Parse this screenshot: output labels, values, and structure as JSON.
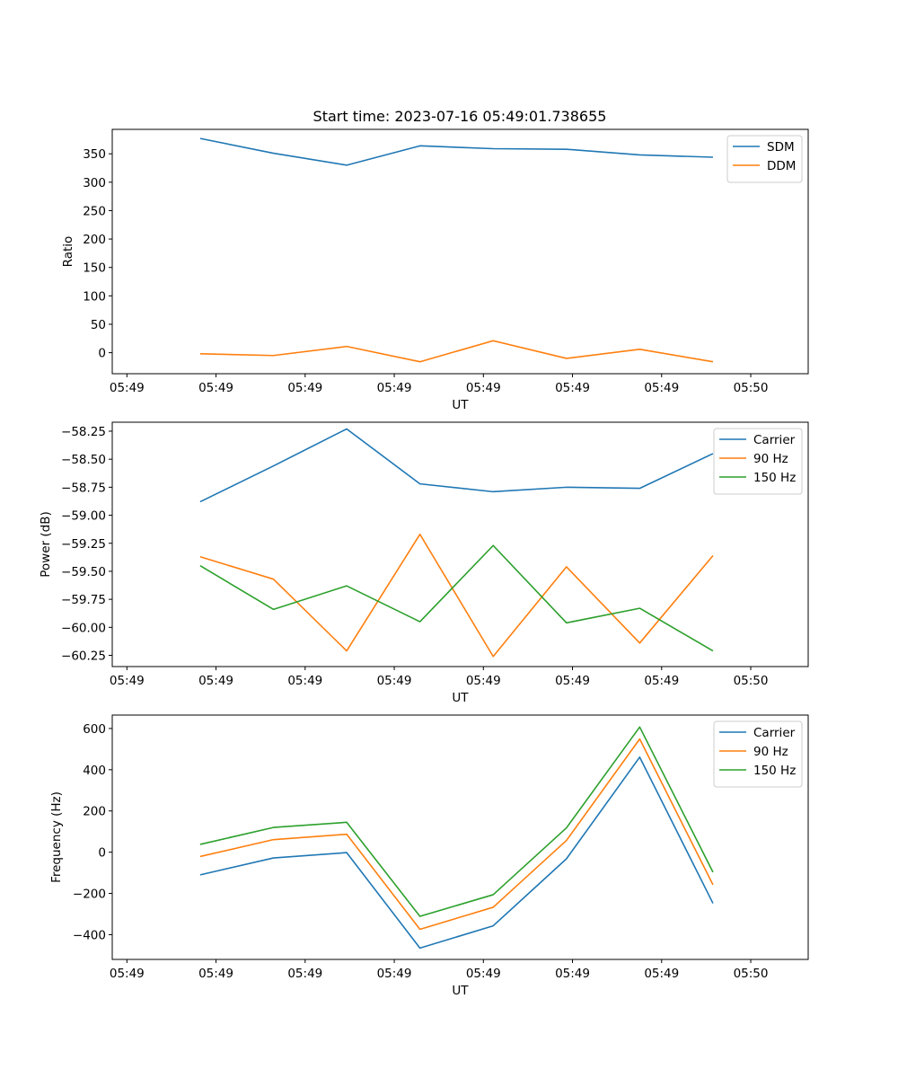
{
  "title": "Start time: 2023-07-16 05:49:01.738655",
  "colors": {
    "blue": "#1f77b4",
    "orange": "#ff7f0e",
    "green": "#2ca02c"
  },
  "chart_data": [
    {
      "type": "line",
      "xlabel": "UT",
      "ylabel": "Ratio",
      "x_tick_labels": [
        "05:49",
        "05:49",
        "05:49",
        "05:49",
        "05:49",
        "05:49",
        "05:49",
        "05:50"
      ],
      "x": [
        1,
        2,
        3,
        4,
        5,
        6,
        7,
        8
      ],
      "xlim": [
        -0.2,
        9.3
      ],
      "ylim": [
        -37,
        393
      ],
      "yticks": [
        0,
        50,
        100,
        150,
        200,
        250,
        300,
        350
      ],
      "y_tick_labels": [
        "0",
        "50",
        "100",
        "150",
        "200",
        "250",
        "300",
        "350"
      ],
      "legend_position": "top-right",
      "series": [
        {
          "name": "SDM",
          "color": "#1f77b4",
          "values": [
            377,
            351,
            330,
            364,
            359,
            358,
            348,
            344
          ]
        },
        {
          "name": "DDM",
          "color": "#ff7f0e",
          "values": [
            -2,
            -5,
            11,
            -16,
            21,
            -10,
            6,
            -16
          ]
        }
      ]
    },
    {
      "type": "line",
      "xlabel": "UT",
      "ylabel": "Power (dB)",
      "x_tick_labels": [
        "05:49",
        "05:49",
        "05:49",
        "05:49",
        "05:49",
        "05:49",
        "05:49",
        "05:50"
      ],
      "x": [
        1,
        2,
        3,
        4,
        5,
        6,
        7,
        8
      ],
      "xlim": [
        -0.2,
        9.3
      ],
      "ylim": [
        -60.35,
        -58.17
      ],
      "yticks": [
        -58.25,
        -58.5,
        -58.75,
        -59.0,
        -59.25,
        -59.5,
        -59.75,
        -60.0,
        -60.25
      ],
      "y_tick_labels": [
        "−58.25",
        "−58.50",
        "−58.75",
        "−59.00",
        "−59.25",
        "−59.50",
        "−59.75",
        "−60.00",
        "−60.25"
      ],
      "legend_position": "top-right",
      "series": [
        {
          "name": "Carrier",
          "color": "#1f77b4",
          "values": [
            -58.88,
            -58.56,
            -58.23,
            -58.72,
            -58.79,
            -58.75,
            -58.76,
            -58.45
          ]
        },
        {
          "name": "90 Hz",
          "color": "#ff7f0e",
          "values": [
            -59.37,
            -59.57,
            -60.21,
            -59.17,
            -60.26,
            -59.46,
            -60.14,
            -59.36
          ]
        },
        {
          "name": "150 Hz",
          "color": "#2ca02c",
          "values": [
            -59.45,
            -59.84,
            -59.63,
            -59.95,
            -59.27,
            -59.96,
            -59.83,
            -60.21
          ]
        }
      ]
    },
    {
      "type": "line",
      "xlabel": "UT",
      "ylabel": "Frequency (Hz)",
      "x_tick_labels": [
        "05:49",
        "05:49",
        "05:49",
        "05:49",
        "05:49",
        "05:49",
        "05:49",
        "05:50"
      ],
      "x": [
        1,
        2,
        3,
        4,
        5,
        6,
        7,
        8
      ],
      "xlim": [
        -0.2,
        9.3
      ],
      "ylim": [
        -520,
        665
      ],
      "yticks": [
        600,
        400,
        200,
        0,
        -200,
        -400
      ],
      "y_tick_labels": [
        "600",
        "400",
        "200",
        "0",
        "−200",
        "−400"
      ],
      "legend_position": "top-right",
      "series": [
        {
          "name": "Carrier",
          "color": "#1f77b4",
          "values": [
            -110,
            -28,
            -2,
            -465,
            -357,
            -32,
            461,
            -248
          ]
        },
        {
          "name": "90 Hz",
          "color": "#ff7f0e",
          "values": [
            -21,
            61,
            87,
            -374,
            -267,
            57,
            549,
            -158
          ]
        },
        {
          "name": "150 Hz",
          "color": "#2ca02c",
          "values": [
            38,
            120,
            145,
            -311,
            -206,
            118,
            607,
            -97
          ]
        }
      ]
    }
  ]
}
